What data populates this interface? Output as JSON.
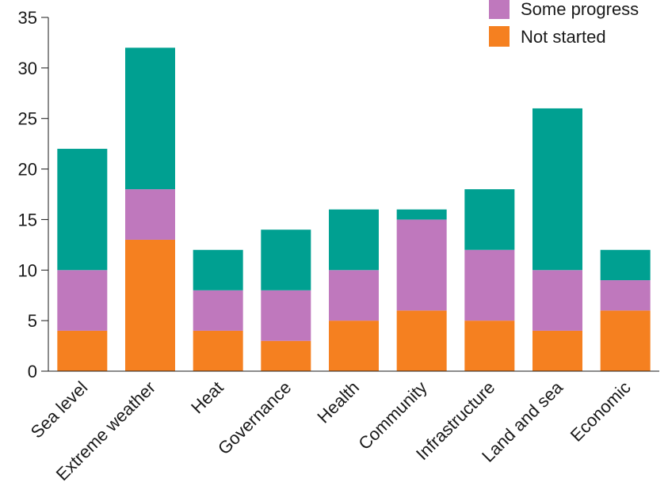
{
  "chart_data": {
    "type": "bar",
    "stacked": true,
    "title": "",
    "xlabel": "",
    "ylabel": "",
    "ylim": [
      0,
      35
    ],
    "yticks": [
      0,
      5,
      10,
      15,
      20,
      25,
      30,
      35
    ],
    "grid": false,
    "legend_position": "top-right",
    "categories": [
      "Sea level",
      "Extreme weather",
      "Heat",
      "Governance",
      "Health",
      "Community",
      "Infrastructure",
      "Land and sea",
      "Economic"
    ],
    "series": [
      {
        "name": "Not started",
        "color": "#f58020",
        "values": [
          4,
          13,
          4,
          3,
          5,
          6,
          5,
          4,
          6
        ]
      },
      {
        "name": "Some progress",
        "color": "#bf78bd",
        "values": [
          6,
          5,
          4,
          5,
          5,
          9,
          7,
          6,
          3
        ]
      },
      {
        "name": "",
        "color": "#00a091",
        "values": [
          12,
          14,
          4,
          6,
          6,
          1,
          6,
          16,
          3
        ]
      }
    ],
    "legend": [
      {
        "label": "Some progress",
        "color": "#bf78bd"
      },
      {
        "label": "Not started",
        "color": "#f58020"
      }
    ]
  }
}
